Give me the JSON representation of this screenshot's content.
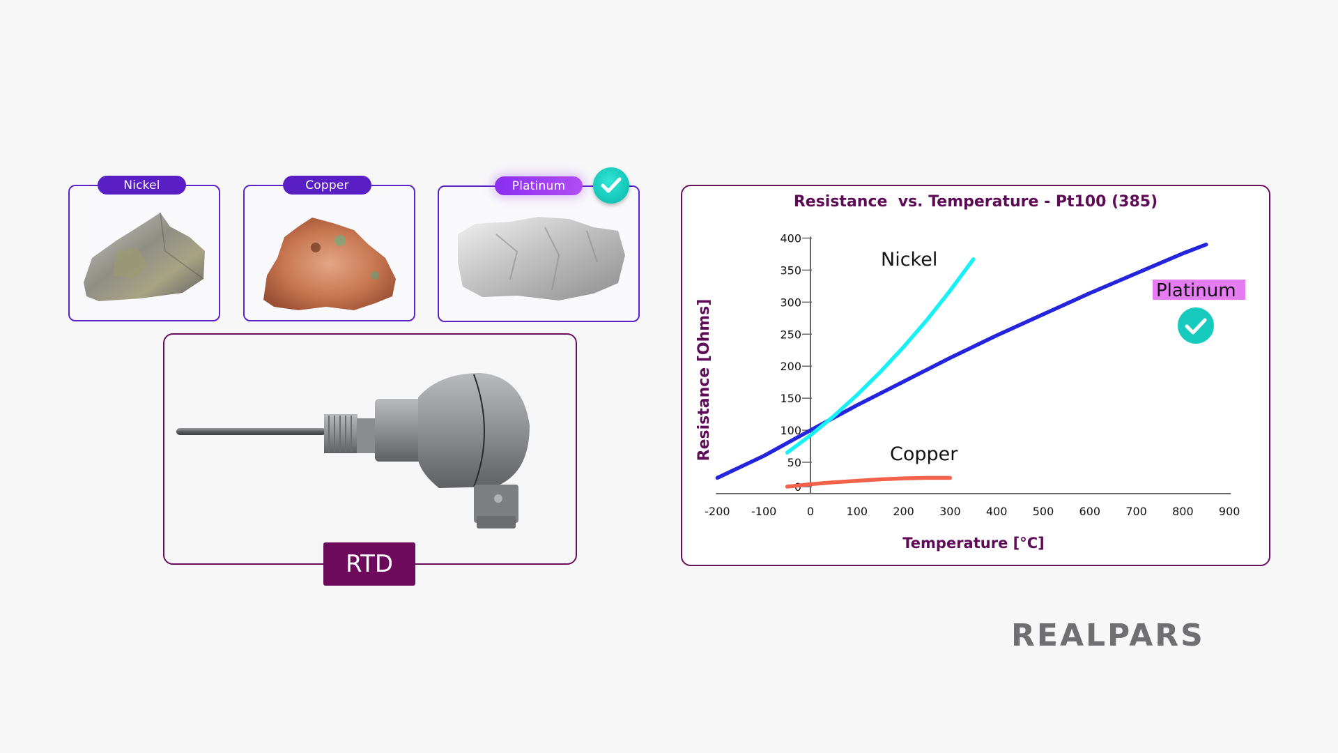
{
  "metals": [
    {
      "label": "Nickel",
      "selected": false
    },
    {
      "label": "Copper",
      "selected": false
    },
    {
      "label": "Platinum",
      "selected": true
    }
  ],
  "rtd": {
    "label": "RTD"
  },
  "logo": {
    "text": "REALPARS"
  },
  "icons": {
    "selected_check": "check-circle-icon"
  },
  "colors": {
    "badge": "#5a1fc4",
    "badge_selected": "#9b3af2",
    "card_border_metal": "#5a22c8",
    "card_border_dark": "#6a0d5e",
    "check": "#16cbbd",
    "title": "#5e0b57",
    "platinum": "#2424dd",
    "nickel": "#19f0f5",
    "copper": "#f4614a",
    "platinum_label_bg": "#e57cf2"
  },
  "chart_data": {
    "type": "line",
    "title": "Resistance  vs. Temperature - Pt100 (385)",
    "xlabel": "Temperature [°C]",
    "ylabel": "Resistance [Ohms]",
    "xlim": [
      -200,
      900
    ],
    "ylim": [
      0,
      400
    ],
    "x_ticks": [
      -200,
      -100,
      0,
      100,
      200,
      300,
      400,
      500,
      600,
      700,
      800,
      900
    ],
    "y_ticks": [
      0,
      50,
      100,
      150,
      200,
      250,
      300,
      350,
      400
    ],
    "grid": false,
    "legend": "inline labels",
    "series": [
      {
        "name": "Platinum",
        "color": "#2424dd",
        "x": [
          -200,
          -100,
          0,
          100,
          200,
          300,
          400,
          500,
          600,
          700,
          800,
          850
        ],
        "y": [
          18,
          60,
          100,
          139,
          176,
          213,
          248,
          281,
          314,
          345,
          376,
          390
        ]
      },
      {
        "name": "Nickel",
        "color": "#19f0f5",
        "x": [
          -50,
          0,
          50,
          100,
          150,
          200,
          250,
          300,
          350
        ],
        "y": [
          65,
          92,
          122,
          155,
          191,
          230,
          272,
          318,
          367
        ]
      },
      {
        "name": "Copper",
        "color": "#f4614a",
        "x": [
          -50,
          0,
          50,
          100,
          150,
          200,
          250,
          300
        ],
        "y": [
          0,
          5,
          9,
          12,
          15,
          17,
          18,
          18
        ]
      }
    ],
    "annotations": [
      {
        "text": "Nickel"
      },
      {
        "text": "Copper"
      },
      {
        "text": "Platinum",
        "highlighted": true,
        "icon": "check-circle-icon"
      }
    ]
  }
}
